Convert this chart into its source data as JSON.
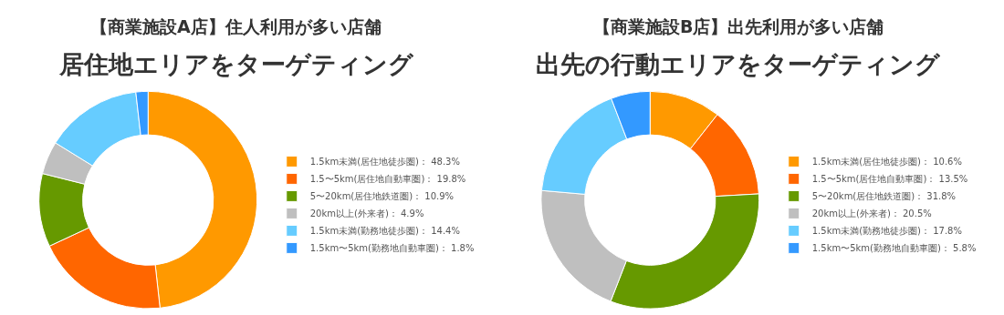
{
  "chart_data": [
    {
      "type": "donut",
      "title": "【商業施設A店】住人利用が多い店舗",
      "subtitle": "居住地エリアをターゲティング",
      "legend": "right",
      "categories": [
        "1.5km未満(居住地徒歩圏)",
        "1.5〜5km(居住地自動車圏)",
        "5〜20km(居住地鉄道圏)",
        "20km以上(外来者)",
        "1.5km未満(勤務地徒歩圏)",
        "1.5km〜5km(勤務地自動車圏)"
      ],
      "values": [
        48.3,
        19.8,
        10.9,
        4.9,
        14.4,
        1.8
      ],
      "value_labels": [
        "48.3%",
        "19.8%",
        "10.9%",
        "4.9%",
        "14.4%",
        "1.8%"
      ],
      "colors": [
        "#ff9900",
        "#ff6600",
        "#669900",
        "#bfbfbf",
        "#66ccff",
        "#3399ff"
      ]
    },
    {
      "type": "donut",
      "title": "【商業施設B店】出先利用が多い店舗",
      "subtitle": "出先の行動エリアをターゲティング",
      "legend": "right",
      "categories": [
        "1.5km未満(居住地徒歩圏)",
        "1.5〜5km(居住地自動車圏)",
        "5〜20km(居住地鉄道圏)",
        "20km以上(外来者)",
        "1.5km未満(勤務地徒歩圏)",
        "1.5km〜5km(勤務地自動車圏)"
      ],
      "values": [
        10.6,
        13.5,
        31.8,
        20.5,
        17.8,
        5.8
      ],
      "value_labels": [
        "10.6%",
        "13.5%",
        "31.8%",
        "20.5%",
        "17.8%",
        "5.8%"
      ],
      "colors": [
        "#ff9900",
        "#ff6600",
        "#669900",
        "#bfbfbf",
        "#66ccff",
        "#3399ff"
      ]
    }
  ]
}
